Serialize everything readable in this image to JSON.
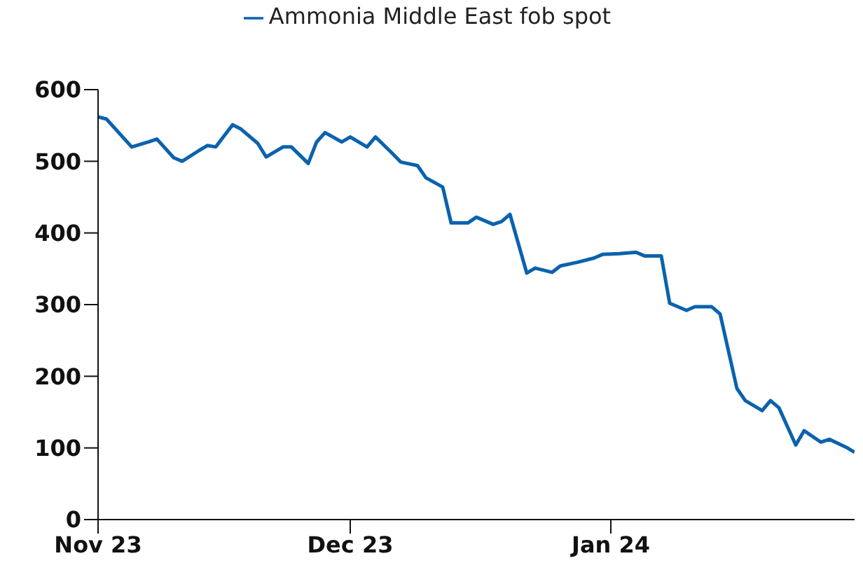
{
  "chart_data": {
    "type": "line",
    "x": [
      "2023-11-01",
      "2023-11-02",
      "2023-11-04",
      "2023-11-05",
      "2023-11-07",
      "2023-11-08",
      "2023-11-10",
      "2023-11-11",
      "2023-11-13",
      "2023-11-14",
      "2023-11-15",
      "2023-11-17",
      "2023-11-18",
      "2023-11-20",
      "2023-11-21",
      "2023-11-23",
      "2023-11-24",
      "2023-11-26",
      "2023-11-27",
      "2023-11-28",
      "2023-11-30",
      "2023-12-01",
      "2023-12-03",
      "2023-12-04",
      "2023-12-06",
      "2023-12-07",
      "2023-12-09",
      "2023-12-10",
      "2023-12-12",
      "2023-12-13",
      "2023-12-15",
      "2023-12-16",
      "2023-12-18",
      "2023-12-19",
      "2023-12-20",
      "2023-12-22",
      "2023-12-23",
      "2023-12-25",
      "2023-12-26",
      "2023-12-28",
      "2023-12-30",
      "2023-12-31",
      "2024-01-02",
      "2024-01-04",
      "2024-01-05",
      "2024-01-07",
      "2024-01-08",
      "2024-01-10",
      "2024-01-11",
      "2024-01-13",
      "2024-01-14",
      "2024-01-16",
      "2024-01-17",
      "2024-01-19",
      "2024-01-20",
      "2024-01-21",
      "2024-01-23",
      "2024-01-24",
      "2024-01-26",
      "2024-01-27",
      "2024-01-29",
      "2024-01-30"
    ],
    "series": [
      {
        "name": "Ammonia Middle East fob spot",
        "color": "#0b62ad",
        "values": [
          562,
          559,
          533,
          520,
          527,
          531,
          505,
          500,
          515,
          522,
          520,
          551,
          545,
          525,
          506,
          520,
          520,
          497,
          527,
          540,
          527,
          534,
          520,
          534,
          511,
          499,
          494,
          477,
          464,
          414,
          414,
          422,
          412,
          416,
          426,
          344,
          351,
          345,
          354,
          359,
          365,
          370,
          371,
          373,
          368,
          368,
          302,
          292,
          297,
          297,
          287,
          183,
          166,
          152,
          166,
          156,
          104,
          124,
          108,
          112,
          101,
          94
        ]
      }
    ],
    "xlim": [
      "2023-11-01",
      "2024-01-30"
    ],
    "xticks": [
      {
        "value": "2023-11-01",
        "label": "Nov 23"
      },
      {
        "value": "2023-12-01",
        "label": "Dec 23"
      },
      {
        "value": "2024-01-01",
        "label": "Jan 24"
      }
    ],
    "ylim": [
      0,
      600
    ],
    "yticks": [
      0,
      100,
      200,
      300,
      400,
      500,
      600
    ],
    "grid": false,
    "legend": "top",
    "marker": "none",
    "line_style": "solid"
  }
}
